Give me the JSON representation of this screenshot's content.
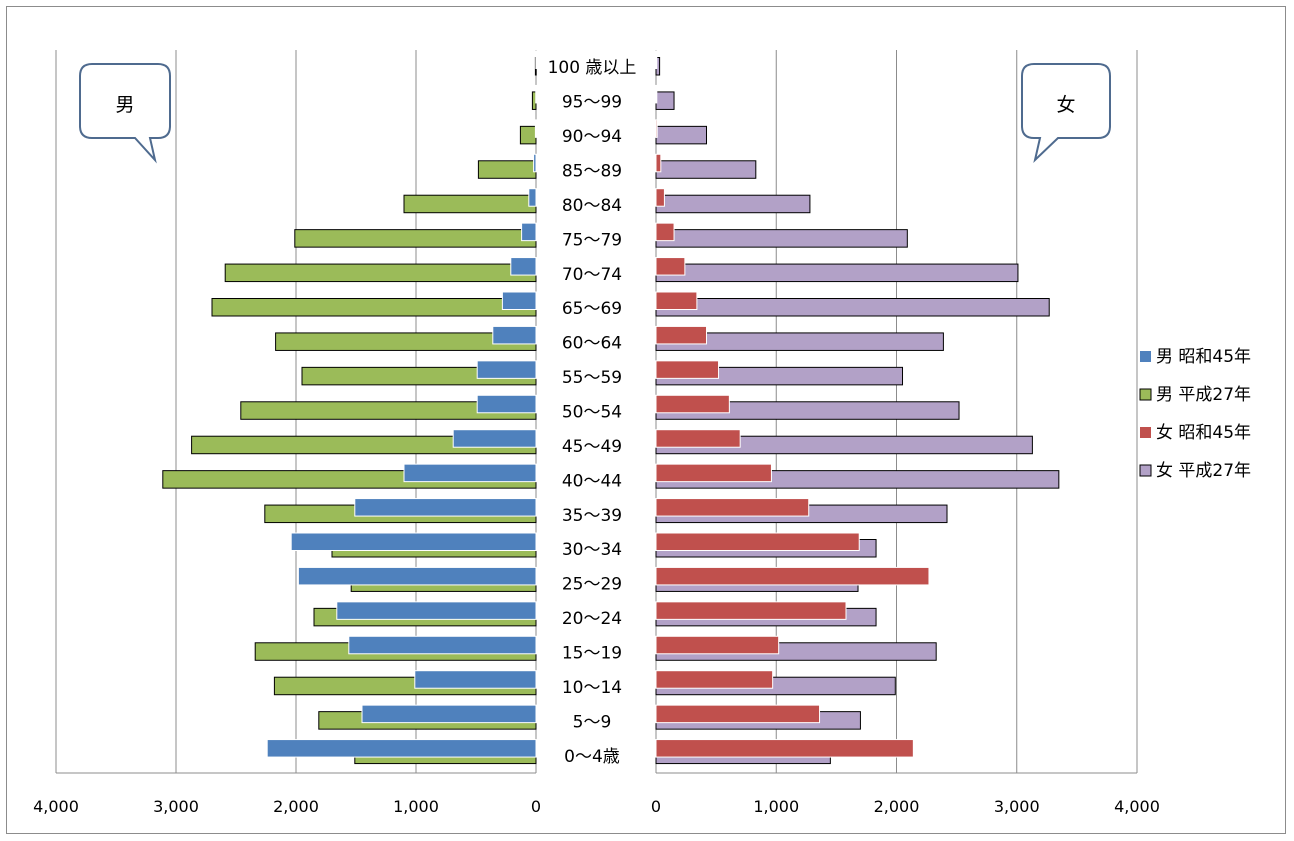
{
  "chart_data": {
    "type": "bar",
    "orientation": "horizontal",
    "layout": "population-pyramid",
    "categories": [
      "0〜4歳",
      "5〜9",
      "10〜14",
      "15〜19",
      "20〜24",
      "25〜29",
      "30〜34",
      "35〜39",
      "40〜44",
      "45〜49",
      "50〜54",
      "55〜59",
      "60〜64",
      "65〜69",
      "70〜74",
      "75〜79",
      "80〜84",
      "85〜89",
      "90〜94",
      "95〜99",
      "100 歳以上"
    ],
    "series": [
      {
        "name": "男 昭和45年",
        "side": "left",
        "color": "#4f81bd",
        "values": [
          2240,
          1450,
          1010,
          1560,
          1660,
          1980,
          2040,
          1510,
          1100,
          690,
          490,
          490,
          360,
          280,
          210,
          120,
          60,
          20,
          5,
          2,
          1
        ]
      },
      {
        "name": "男 平成27年",
        "side": "left",
        "color": "#9bbb59",
        "values": [
          1510,
          1810,
          2180,
          2340,
          1850,
          1540,
          1700,
          2260,
          3110,
          2870,
          2460,
          1950,
          2170,
          2700,
          2590,
          2010,
          1100,
          480,
          130,
          30,
          5
        ]
      },
      {
        "name": "女 昭和45年",
        "side": "right",
        "color": "#c0504d",
        "values": [
          2140,
          1360,
          970,
          1020,
          1580,
          2270,
          1690,
          1270,
          960,
          700,
          610,
          520,
          420,
          340,
          240,
          150,
          70,
          40,
          10,
          3,
          1
        ]
      },
      {
        "name": "女 平成27年",
        "side": "right",
        "color": "#b2a1c7",
        "values": [
          1450,
          1700,
          1990,
          2330,
          1830,
          1680,
          1830,
          2420,
          3350,
          3130,
          2520,
          2050,
          2390,
          3270,
          3010,
          2090,
          1280,
          830,
          420,
          150,
          30
        ]
      }
    ],
    "x_left": {
      "range": [
        0,
        4000
      ],
      "reversed": true,
      "ticks": [
        4000,
        3000,
        2000,
        1000,
        0
      ],
      "tick_labels": [
        "4,000",
        "3,000",
        "2,000",
        "1,000",
        "0"
      ]
    },
    "x_right": {
      "range": [
        0,
        4000
      ],
      "ticks": [
        0,
        1000,
        2000,
        3000,
        4000
      ],
      "tick_labels": [
        "0",
        "1,000",
        "2,000",
        "3,000",
        "4,000"
      ]
    },
    "grid": "vertical",
    "legend_position": "right",
    "annotations": {
      "left": "男",
      "right": "女"
    }
  }
}
